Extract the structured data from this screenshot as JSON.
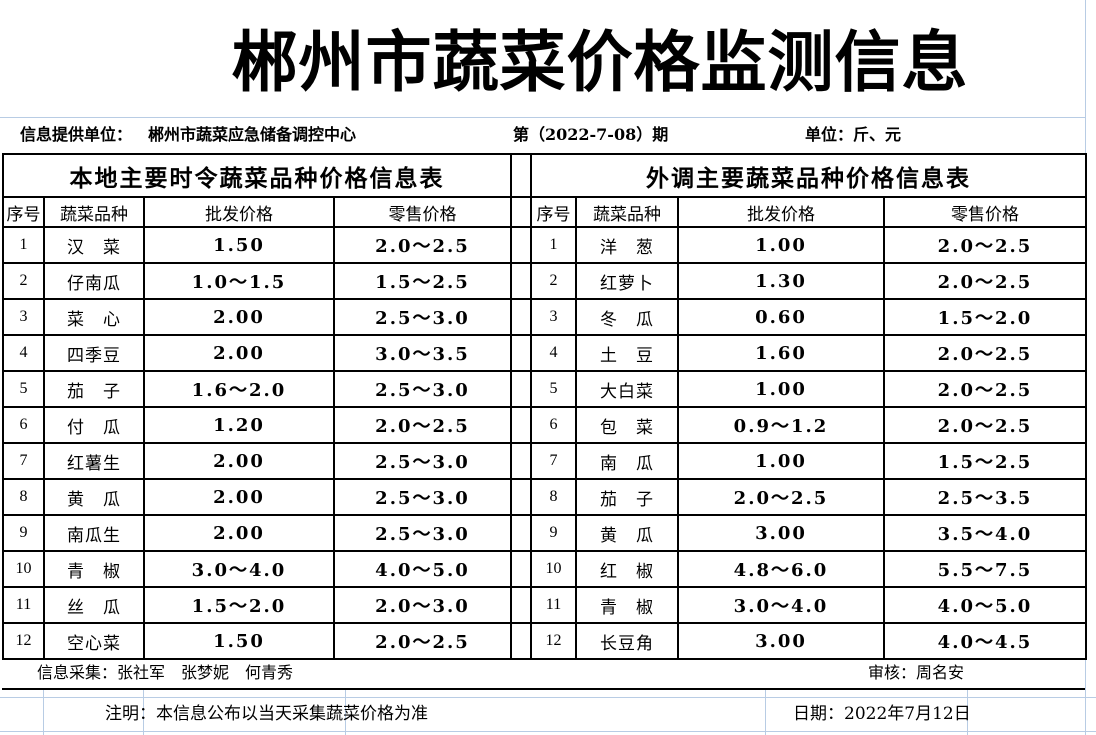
{
  "title": "郴州市蔬菜价格监测信息",
  "info_row": {
    "provider_label": "信息提供单位：",
    "provider_value": "郴州市蔬菜应急储备调控中心",
    "issue": "第（2022-7-08）期",
    "unit": "单位：斤、元"
  },
  "left_table": {
    "title": "本地主要时令蔬菜品种价格信息表",
    "headers": [
      "序号",
      "蔬菜品种",
      "批发价格",
      "零售价格"
    ],
    "rows": [
      {
        "no": "1",
        "name": "汉　菜",
        "wholesale": "1.50",
        "retail": "2.0～2.5"
      },
      {
        "no": "2",
        "name": "仔南瓜",
        "wholesale": "1.0～1.5",
        "retail": "1.5～2.5"
      },
      {
        "no": "3",
        "name": "菜　心",
        "wholesale": "2.00",
        "retail": "2.5～3.0"
      },
      {
        "no": "4",
        "name": "四季豆",
        "wholesale": "2.00",
        "retail": "3.0～3.5"
      },
      {
        "no": "5",
        "name": "茄　子",
        "wholesale": "1.6～2.0",
        "retail": "2.5～3.0"
      },
      {
        "no": "6",
        "name": "付　瓜",
        "wholesale": "1.20",
        "retail": "2.0～2.5"
      },
      {
        "no": "7",
        "name": "红薯生",
        "wholesale": "2.00",
        "retail": "2.5～3.0"
      },
      {
        "no": "8",
        "name": "黄　瓜",
        "wholesale": "2.00",
        "retail": "2.5～3.0"
      },
      {
        "no": "9",
        "name": "南瓜生",
        "wholesale": "2.00",
        "retail": "2.5～3.0"
      },
      {
        "no": "10",
        "name": "青　椒",
        "wholesale": "3.0～4.0",
        "retail": "4.0～5.0"
      },
      {
        "no": "11",
        "name": "丝　瓜",
        "wholesale": "1.5～2.0",
        "retail": "2.0～3.0"
      },
      {
        "no": "12",
        "name": "空心菜",
        "wholesale": "1.50",
        "retail": "2.0～2.5"
      }
    ]
  },
  "right_table": {
    "title": "外调主要蔬菜品种价格信息表",
    "headers": [
      "序号",
      "蔬菜品种",
      "批发价格",
      "零售价格"
    ],
    "rows": [
      {
        "no": "1",
        "name": "洋　葱",
        "wholesale": "1.00",
        "retail": "2.0～2.5"
      },
      {
        "no": "2",
        "name": "红萝卜",
        "wholesale": "1.30",
        "retail": "2.0～2.5"
      },
      {
        "no": "3",
        "name": "冬　瓜",
        "wholesale": "0.60",
        "retail": "1.5～2.0"
      },
      {
        "no": "4",
        "name": "土　豆",
        "wholesale": "1.60",
        "retail": "2.0～2.5"
      },
      {
        "no": "5",
        "name": "大白菜",
        "wholesale": "1.00",
        "retail": "2.0～2.5"
      },
      {
        "no": "6",
        "name": "包　菜",
        "wholesale": "0.9～1.2",
        "retail": "2.0～2.5"
      },
      {
        "no": "7",
        "name": "南　瓜",
        "wholesale": "1.00",
        "retail": "1.5～2.5"
      },
      {
        "no": "8",
        "name": "茄　子",
        "wholesale": "2.0～2.5",
        "retail": "2.5～3.5"
      },
      {
        "no": "9",
        "name": "黄　瓜",
        "wholesale": "3.00",
        "retail": "3.5～4.0"
      },
      {
        "no": "10",
        "name": "红　椒",
        "wholesale": "4.8～6.0",
        "retail": "5.5～7.5"
      },
      {
        "no": "11",
        "name": "青　椒",
        "wholesale": "3.0～4.0",
        "retail": "4.0～5.0"
      },
      {
        "no": "12",
        "name": "长豆角",
        "wholesale": "3.00",
        "retail": "4.0～4.5"
      }
    ]
  },
  "footer": {
    "collectors": "信息采集：张社军　张梦妮　何青秀",
    "auditor": "审核：周名安",
    "note": "注明：本信息公布以当天采集蔬菜价格为准",
    "date": "日期：2022年7月12日"
  },
  "colors": {
    "border": "#000000",
    "gridline": "#b8cce4",
    "text": "#000000",
    "background": "#ffffff"
  }
}
